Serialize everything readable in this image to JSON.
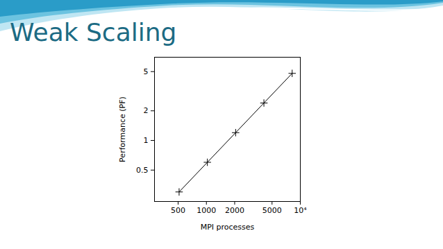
{
  "chart_data": {
    "type": "line",
    "title": "Weak Scaling",
    "x_label": "MPI processes",
    "y_label": "Performance (PF)",
    "log": true,
    "x": [
      512,
      1024,
      2048,
      4096,
      8192
    ],
    "series": [
      {
        "name": "Performance",
        "color": "#000000",
        "marker": "plus",
        "line_style": "solid",
        "values": [
          0.3,
          0.6,
          1.2,
          2.4,
          4.8
        ]
      }
    ],
    "xlim": [
      280,
      10000
    ],
    "xticks": [
      500,
      1000,
      2000,
      5000,
      {
        "value": 10000,
        "label": "10⁴"
      }
    ],
    "ylim": [
      0.24,
      7
    ],
    "yticks": [
      0.5,
      1,
      2,
      5
    ],
    "grid": false
  }
}
